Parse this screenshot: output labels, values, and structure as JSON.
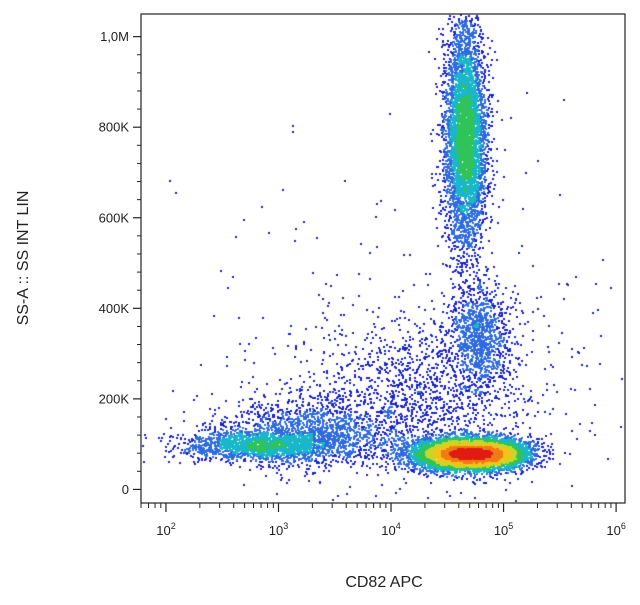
{
  "chart_data": {
    "type": "scatter",
    "subtype": "flow-cytometry-density-dot-plot",
    "title": "",
    "xlabel": "CD82 APC",
    "ylabel": "SS-A :: SS INT LIN",
    "x_scale": "log",
    "y_scale": "linear",
    "xlim": [
      60,
      1200000
    ],
    "ylim": [
      -30000,
      1050000
    ],
    "x_ticks": [
      {
        "value": 100,
        "base": "10",
        "exp": "2"
      },
      {
        "value": 1000,
        "base": "10",
        "exp": "3"
      },
      {
        "value": 10000,
        "base": "10",
        "exp": "4"
      },
      {
        "value": 100000,
        "base": "10",
        "exp": "5"
      },
      {
        "value": 1000000,
        "base": "10",
        "exp": "6"
      }
    ],
    "y_ticks": [
      {
        "value": 0,
        "label": "0"
      },
      {
        "value": 200000,
        "label": "200K"
      },
      {
        "value": 400000,
        "label": "400K"
      },
      {
        "value": 600000,
        "label": "600K"
      },
      {
        "value": 800000,
        "label": "800K"
      },
      {
        "value": 1000000,
        "label": "1,0M"
      }
    ],
    "grid": false,
    "legend": "none",
    "color_scale": [
      "#1a22c8",
      "#2f6be0",
      "#19b7c9",
      "#30c35a",
      "#c8d62a",
      "#f2c418",
      "#f07a14",
      "#e01b12"
    ],
    "populations": [
      {
        "x_center": 40000,
        "y_center": 80000,
        "x_spread_log10": 0.22,
        "y_spread": 18000,
        "count": 5200
      },
      {
        "x_center": 80000,
        "y_center": 80000,
        "x_spread_log10": 0.18,
        "y_spread": 16000,
        "count": 2600
      },
      {
        "x_center": 700,
        "y_center": 100000,
        "x_spread_log10": 0.35,
        "y_spread": 18000,
        "count": 2000
      },
      {
        "x_center": 2500,
        "y_center": 130000,
        "x_spread_log10": 0.45,
        "y_spread": 40000,
        "count": 1400
      },
      {
        "x_center": 45000,
        "y_center": 780000,
        "x_spread_log10": 0.09,
        "y_spread": 120000,
        "count": 5000
      },
      {
        "x_center": 60000,
        "y_center": 340000,
        "x_spread_log10": 0.14,
        "y_spread": 55000,
        "count": 1000
      },
      {
        "x_center": 20000,
        "y_center": 220000,
        "x_spread_log10": 0.5,
        "y_spread": 80000,
        "count": 1100
      },
      {
        "x_center": 20000,
        "y_center": 300000,
        "x_spread_log10": 1.0,
        "y_spread": 220000,
        "count": 350
      }
    ]
  }
}
